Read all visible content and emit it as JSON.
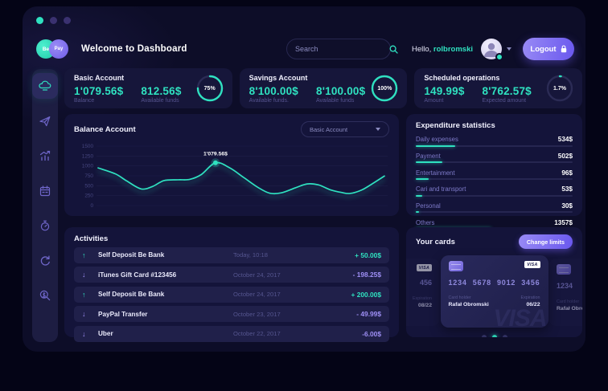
{
  "colors": {
    "teal": "#2fe1c0",
    "purple": "#8678f0",
    "page_bg": "#040416",
    "window_bg": "#0d0d28",
    "panel_bg": "#14143a",
    "muted_text": "#55558f",
    "traffic_lights": [
      "#2fe1c0",
      "#3a3170",
      "#3a3170"
    ]
  },
  "header": {
    "logo_left": "Be",
    "logo_right": "Pay",
    "title": "Welcome to Dashboard",
    "search_placeholder": "Search",
    "greeting_prefix": "Hello, ",
    "username": "rolbromski",
    "logout_label": "Logout"
  },
  "sidebar": {
    "items": [
      {
        "name": "dashboard",
        "active": true
      },
      {
        "name": "transfers",
        "active": false
      },
      {
        "name": "statistics",
        "active": false
      },
      {
        "name": "calendar",
        "active": false
      },
      {
        "name": "scheduled",
        "active": false
      },
      {
        "name": "history",
        "active": false
      },
      {
        "name": "search-funds",
        "active": false
      }
    ]
  },
  "stat_cards": [
    {
      "title": "Basic Account",
      "value1": "1'079.56$",
      "label1": "Balance",
      "value2": "812.56$",
      "label2": "Available funds",
      "percent": 75,
      "percent_label": "75%"
    },
    {
      "title": "Savings Account",
      "value1": "8'100.00$",
      "label1": "Available funds.",
      "value2": "8'100.00$",
      "label2": "Available funds",
      "percent": 100,
      "percent_label": "100%"
    },
    {
      "title": "Scheduled operations",
      "value1": "149.99$",
      "label1": "Amount",
      "value2": "8'762.57$",
      "label2": "Expected amount",
      "percent": 1.7,
      "percent_label": "1.7%"
    }
  ],
  "balance_panel": {
    "title": "Balance Account",
    "selector_value": "Basic Account"
  },
  "chart_data": {
    "type": "line",
    "title": "Balance Account",
    "ylim": [
      0,
      1500
    ],
    "yticks": [
      1500,
      1250,
      1000,
      750,
      500,
      250,
      0
    ],
    "grid": true,
    "legend": "none",
    "line_color": "#2fe1c0",
    "marker": {
      "x": 41,
      "y": 1079.56,
      "label": "1'079.56$"
    },
    "points": [
      [
        0,
        950
      ],
      [
        6,
        800
      ],
      [
        10,
        620
      ],
      [
        15,
        420
      ],
      [
        19,
        480
      ],
      [
        23,
        630
      ],
      [
        28,
        650
      ],
      [
        32,
        660
      ],
      [
        36,
        780
      ],
      [
        41,
        1079.56
      ],
      [
        46,
        950
      ],
      [
        51,
        700
      ],
      [
        56,
        450
      ],
      [
        60,
        310
      ],
      [
        64,
        320
      ],
      [
        69,
        450
      ],
      [
        73,
        545
      ],
      [
        77,
        520
      ],
      [
        81,
        400
      ],
      [
        85,
        330
      ],
      [
        88,
        305
      ],
      [
        92,
        390
      ],
      [
        96,
        560
      ],
      [
        100,
        745
      ]
    ]
  },
  "expenditure": {
    "title": "Expenditure statistics",
    "rows": [
      {
        "label": "Daily expenses",
        "value": "534$",
        "percent": 25
      },
      {
        "label": "Payment",
        "value": "502$",
        "percent": 17
      },
      {
        "label": "Entertainment",
        "value": "96$",
        "percent": 8
      },
      {
        "label": "Cari and transport",
        "value": "53$",
        "percent": 4
      },
      {
        "label": "Personal",
        "value": "30$",
        "percent": 2
      },
      {
        "label": "Others",
        "value": "1357$",
        "percent": 48
      }
    ]
  },
  "activities": {
    "title": "Activities",
    "rows": [
      {
        "direction": "up",
        "name": "Self Deposit Be Bank",
        "date": "Today, 10:18",
        "amount": "+ 50.00$",
        "positive": true
      },
      {
        "direction": "down",
        "name": "iTunes Gift Card #123456",
        "date": "October 24, 2017",
        "amount": "- 198.25$",
        "positive": false
      },
      {
        "direction": "up",
        "name": "Self Deposit Be Bank",
        "date": "October 24, 2017",
        "amount": "+ 200.00$",
        "positive": true
      },
      {
        "direction": "down",
        "name": "PayPal Transfer",
        "date": "October 23, 2017",
        "amount": "- 49.99$",
        "positive": false
      },
      {
        "direction": "down",
        "name": "Uber",
        "date": "October 22, 2017",
        "amount": "-6.00$",
        "positive": false
      }
    ]
  },
  "cards_panel": {
    "title": "Your cards",
    "button_label": "Change limits",
    "active_card": {
      "brand": "VISA",
      "number_groups": [
        "1234",
        "5678",
        "9012",
        "3456"
      ],
      "holder_label": "Card holder",
      "holder": "Rafał Obromski",
      "exp_label": "Expiration",
      "exp": "06/22",
      "watermark": "VISA"
    },
    "left_partial": {
      "brand": "VISA",
      "number_fragment": "456",
      "exp_label": "Expiration",
      "exp": "08/22"
    },
    "right_partial": {
      "number_fragment": "1234",
      "holder_label": "Card holder",
      "holder": "Rafał Obromski"
    },
    "dots": [
      false,
      true,
      false
    ]
  }
}
